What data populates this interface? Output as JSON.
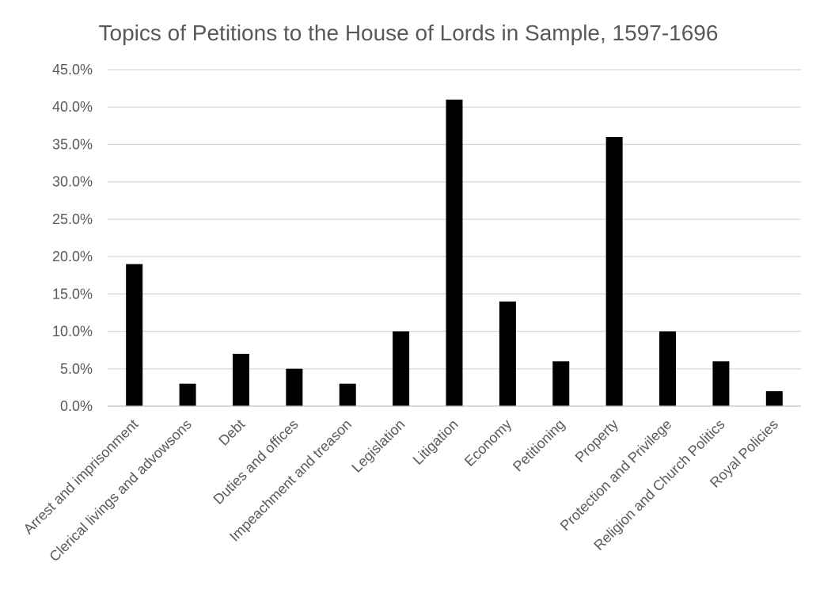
{
  "chart_data": {
    "type": "bar",
    "title": "Topics of Petitions to the House of Lords in Sample, 1597-1696",
    "xlabel": "",
    "ylabel": "",
    "categories": [
      "Arrest and imprisonment",
      "Clerical livings and advowsons",
      "Debt",
      "Duties and offices",
      "Impeachment and treason",
      "Legislation",
      "Litigation",
      "Economy",
      "Petitioning",
      "Property",
      "Protection and Privilege",
      "Religion and Church Politics",
      "Royal Policies"
    ],
    "values": [
      19,
      3,
      7,
      5,
      3,
      10,
      41,
      14,
      6,
      36,
      10,
      6,
      2
    ],
    "ylim": [
      0,
      45
    ],
    "yticks": [
      "0.0%",
      "5.0%",
      "10.0%",
      "15.0%",
      "20.0%",
      "25.0%",
      "30.0%",
      "35.0%",
      "40.0%",
      "45.0%"
    ],
    "grid": true,
    "bar_color": "#000000",
    "legend": "none"
  }
}
